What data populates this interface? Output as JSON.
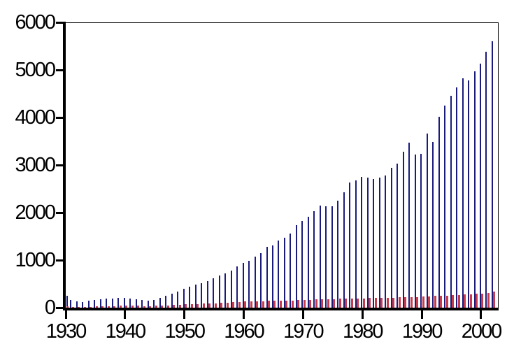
{
  "chart_data": {
    "type": "bar",
    "title": "",
    "xlabel": "",
    "ylabel": "",
    "ylim": [
      0,
      6000
    ],
    "grid": false,
    "legend": "none",
    "y_ticks": [
      "0",
      "1000",
      "2000",
      "3000",
      "4000",
      "5000",
      "6000"
    ],
    "x_ticks": [
      "1930",
      "1940",
      "1950",
      "1960",
      "1970",
      "1980",
      "1990",
      "2000"
    ],
    "x": [
      1930,
      1931,
      1932,
      1933,
      1934,
      1935,
      1936,
      1937,
      1938,
      1939,
      1940,
      1941,
      1942,
      1943,
      1944,
      1945,
      1946,
      1947,
      1948,
      1949,
      1950,
      1951,
      1952,
      1953,
      1954,
      1955,
      1956,
      1957,
      1958,
      1959,
      1960,
      1961,
      1962,
      1963,
      1964,
      1965,
      1966,
      1967,
      1968,
      1969,
      1970,
      1971,
      1972,
      1973,
      1974,
      1975,
      1976,
      1977,
      1978,
      1979,
      1980,
      1981,
      1982,
      1983,
      1984,
      1985,
      1986,
      1987,
      1988,
      1989,
      1990,
      1991,
      1992,
      1993,
      1994,
      1995,
      1996,
      1997,
      1998,
      1999,
      2000,
      2001,
      2002
    ],
    "series": [
      {
        "name": "navy_bars",
        "color": "#1b1b7c",
        "values": [
          260,
          175,
          150,
          130,
          155,
          175,
          195,
          210,
          200,
          215,
          225,
          205,
          185,
          175,
          165,
          180,
          225,
          260,
          310,
          360,
          410,
          455,
          495,
          530,
          575,
          635,
          695,
          730,
          795,
          880,
          950,
          1000,
          1090,
          1160,
          1290,
          1320,
          1430,
          1490,
          1580,
          1750,
          1840,
          1930,
          2040,
          2160,
          2150,
          2140,
          2260,
          2440,
          2640,
          2690,
          2770,
          2750,
          2720,
          2750,
          2800,
          2950,
          3050,
          3290,
          3480,
          3240,
          3250,
          3680,
          3500,
          4030,
          4260,
          4470,
          4640,
          4840,
          4800,
          4980,
          5140,
          5400,
          5620
        ]
      },
      {
        "name": "red_bars",
        "color": "#c73b4c",
        "values": [
          40,
          35,
          32,
          30,
          35,
          40,
          45,
          48,
          50,
          52,
          55,
          55,
          52,
          50,
          50,
          55,
          60,
          65,
          70,
          75,
          82,
          88,
          92,
          96,
          100,
          110,
          115,
          120,
          125,
          132,
          140,
          145,
          150,
          152,
          155,
          158,
          162,
          165,
          168,
          172,
          175,
          180,
          185,
          190,
          192,
          195,
          200,
          205,
          208,
          210,
          212,
          214,
          216,
          218,
          220,
          225,
          228,
          232,
          238,
          240,
          245,
          250,
          258,
          265,
          272,
          278,
          285,
          290,
          298,
          305,
          312,
          330,
          350
        ]
      }
    ]
  }
}
